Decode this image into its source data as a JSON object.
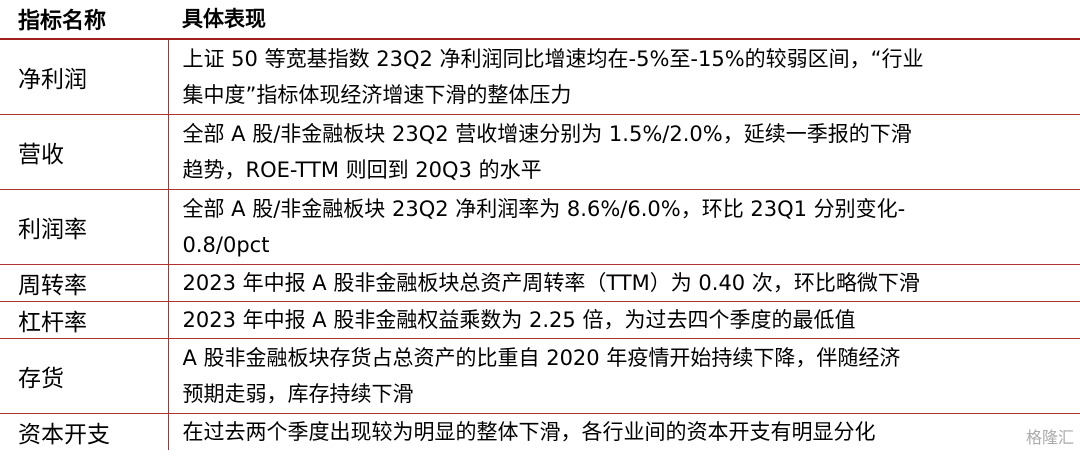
{
  "table": {
    "header": [
      "指标名称",
      "具体表现"
    ],
    "rows": [
      [
        "净利润",
        [
          "上证 50 等宽基指数 23Q2 净利润同比增速均在-5%至-15%的较弱区间，“行业",
          "集中度”指标体现经济增速下滑的整体压力"
        ]
      ],
      [
        "营收",
        [
          "全部 A 股/非金融板块 23Q2 营收增速分别为 1.5%/2.0%，延续一季报的下滑",
          "趋势，ROE-TTM 则回到 20Q3 的水平"
        ]
      ],
      [
        "利润率",
        [
          "全部 A 股/非金融板块 23Q2 净利润率为 8.6%/6.0%，环比 23Q1 分别变化-",
          "0.8/0pct"
        ]
      ],
      [
        "周转率",
        [
          "2023 年中报 A 股非金融板块总资产周转率（TTM）为 0.40 次，环比略微下滑"
        ]
      ],
      [
        "杠杆率",
        [
          "2023 年中报 A 股非金融权益乘数为 2.25 倍，为过去四个季度的最低值"
        ]
      ],
      [
        "存货",
        [
          "A 股非金融板块存货占总资产的比重自 2020 年疫情开始持续下降，伴随经济",
          "预期走弱，库存持续下滑"
        ]
      ],
      [
        "资本开支",
        [
          "在过去两个季度出现较为明显的整体下滑，各行业间的资本开支有明显分化"
        ]
      ]
    ]
  },
  "watermark": "格隆汇"
}
